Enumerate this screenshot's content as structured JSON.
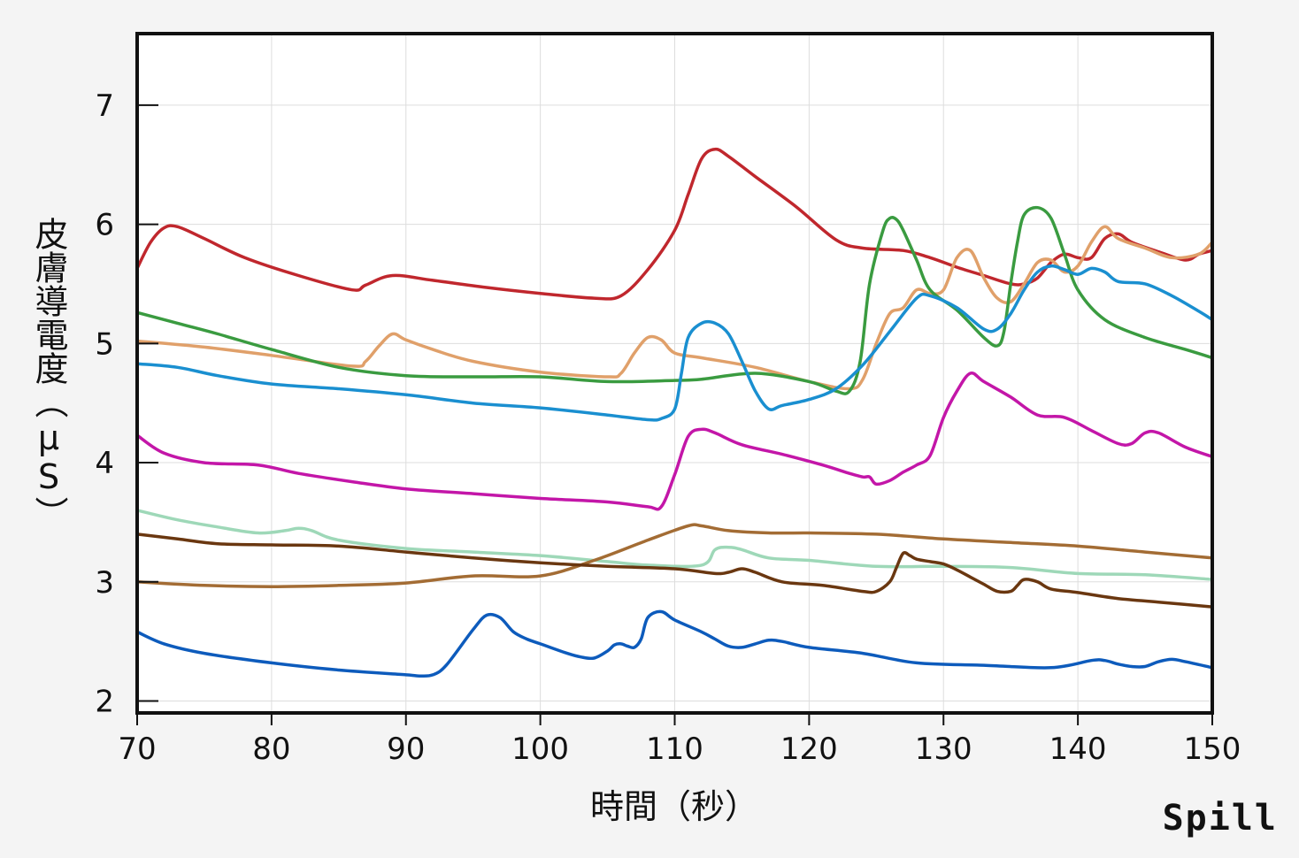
{
  "chart_data": {
    "type": "line",
    "xlabel": "時間（秒）",
    "ylabel": "皮膚導電度（μS）",
    "xlim": [
      70,
      150
    ],
    "ylim": [
      1.9,
      7.6
    ],
    "xticks": [
      "70",
      "80",
      "90",
      "100",
      "110",
      "120",
      "130",
      "140",
      "150"
    ],
    "yticks": [
      "2",
      "3",
      "4",
      "5",
      "6",
      "7"
    ],
    "grid": true,
    "series": [
      {
        "color": "#c0272d",
        "x": [
          70,
          71,
          72,
          73,
          75,
          78,
          82,
          86,
          87,
          89,
          92,
          96,
          100,
          104,
          106,
          108,
          110,
          111,
          112,
          113,
          114,
          116,
          119,
          122,
          124,
          127,
          129,
          131,
          133,
          135,
          136,
          137,
          138,
          139,
          140,
          141,
          142,
          143,
          144,
          146,
          148,
          149,
          150
        ],
        "y": [
          5.63,
          5.85,
          5.97,
          5.98,
          5.88,
          5.72,
          5.57,
          5.45,
          5.49,
          5.57,
          5.53,
          5.47,
          5.42,
          5.38,
          5.4,
          5.62,
          5.95,
          6.25,
          6.55,
          6.63,
          6.57,
          6.4,
          6.15,
          5.87,
          5.8,
          5.78,
          5.72,
          5.64,
          5.57,
          5.5,
          5.5,
          5.55,
          5.68,
          5.75,
          5.72,
          5.72,
          5.88,
          5.92,
          5.85,
          5.77,
          5.7,
          5.75,
          5.78
        ]
      },
      {
        "color": "#e0a06a",
        "x": [
          70,
          75,
          80,
          86,
          87,
          88,
          89,
          90,
          92,
          95,
          100,
          105,
          106,
          107,
          108,
          109,
          110,
          112,
          116,
          120,
          123,
          124,
          125,
          126,
          127,
          128,
          129,
          130,
          131,
          132,
          133,
          134,
          135,
          136,
          137,
          138,
          139,
          140,
          141,
          142,
          143,
          145,
          147,
          149,
          150
        ],
        "y": [
          5.02,
          4.97,
          4.9,
          4.81,
          4.85,
          4.98,
          5.08,
          5.03,
          4.95,
          4.85,
          4.76,
          4.72,
          4.75,
          4.92,
          5.05,
          5.03,
          4.92,
          4.88,
          4.8,
          4.68,
          4.62,
          4.7,
          5.0,
          5.25,
          5.3,
          5.45,
          5.42,
          5.45,
          5.72,
          5.78,
          5.55,
          5.38,
          5.35,
          5.5,
          5.68,
          5.7,
          5.6,
          5.65,
          5.85,
          5.98,
          5.88,
          5.8,
          5.72,
          5.75,
          5.85
        ]
      },
      {
        "color": "#3a9b40",
        "x": [
          70,
          73,
          76,
          80,
          85,
          90,
          95,
          100,
          105,
          110,
          112,
          116,
          120,
          122,
          123,
          123.8,
          124.5,
          125.5,
          126,
          126.5,
          127,
          128,
          129,
          131,
          133,
          134,
          134.5,
          135,
          135.5,
          136,
          137,
          138,
          139,
          140,
          142,
          145,
          148,
          150
        ],
        "y": [
          5.26,
          5.17,
          5.08,
          4.95,
          4.8,
          4.73,
          4.72,
          4.72,
          4.68,
          4.69,
          4.7,
          4.75,
          4.68,
          4.6,
          4.6,
          4.85,
          5.5,
          5.95,
          6.05,
          6.04,
          5.95,
          5.7,
          5.45,
          5.28,
          5.05,
          4.98,
          5.1,
          5.5,
          5.85,
          6.08,
          6.14,
          6.05,
          5.75,
          5.45,
          5.2,
          5.05,
          4.95,
          4.88
        ]
      },
      {
        "color": "#1a8fd0",
        "x": [
          70,
          73,
          76,
          80,
          85,
          90,
          95,
          100,
          105,
          108,
          109,
          110,
          110.5,
          111,
          112,
          113,
          114,
          115,
          116,
          117,
          118,
          120,
          122,
          124,
          126,
          128,
          129,
          131,
          133,
          134,
          135,
          136,
          137,
          138,
          139,
          140,
          141,
          142,
          143,
          145,
          147,
          149,
          150
        ],
        "y": [
          4.83,
          4.8,
          4.73,
          4.66,
          4.62,
          4.57,
          4.5,
          4.46,
          4.4,
          4.36,
          4.37,
          4.45,
          4.75,
          5.05,
          5.17,
          5.17,
          5.08,
          4.85,
          4.6,
          4.45,
          4.48,
          4.53,
          4.62,
          4.82,
          5.1,
          5.38,
          5.4,
          5.3,
          5.12,
          5.12,
          5.25,
          5.45,
          5.6,
          5.65,
          5.62,
          5.58,
          5.63,
          5.6,
          5.52,
          5.5,
          5.4,
          5.27,
          5.2
        ]
      },
      {
        "color": "#c316a8",
        "x": [
          70,
          72,
          75,
          79,
          82,
          86,
          90,
          95,
          100,
          105,
          108,
          109,
          110,
          111,
          112,
          113,
          115,
          118,
          121,
          123,
          124,
          124.5,
          125,
          126,
          127,
          128,
          129,
          130,
          131,
          132,
          133,
          135,
          137,
          139,
          141,
          143,
          144,
          145,
          146,
          148,
          150
        ],
        "y": [
          4.23,
          4.08,
          4.0,
          3.98,
          3.91,
          3.84,
          3.78,
          3.74,
          3.7,
          3.67,
          3.63,
          3.63,
          3.9,
          4.22,
          4.28,
          4.25,
          4.15,
          4.07,
          3.98,
          3.91,
          3.88,
          3.88,
          3.82,
          3.85,
          3.92,
          3.98,
          4.06,
          4.38,
          4.6,
          4.75,
          4.68,
          4.55,
          4.4,
          4.38,
          4.27,
          4.16,
          4.16,
          4.25,
          4.25,
          4.13,
          4.05
        ]
      },
      {
        "color": "#9ed8b8",
        "x": [
          70,
          73,
          76,
          79,
          81,
          82,
          83,
          85,
          90,
          95,
          100,
          105,
          108,
          112,
          113,
          114,
          115,
          117,
          120,
          125,
          130,
          135,
          140,
          145,
          150
        ],
        "y": [
          3.6,
          3.52,
          3.46,
          3.41,
          3.43,
          3.45,
          3.43,
          3.35,
          3.28,
          3.25,
          3.22,
          3.17,
          3.14,
          3.14,
          3.27,
          3.29,
          3.27,
          3.2,
          3.18,
          3.13,
          3.13,
          3.12,
          3.07,
          3.06,
          3.02
        ]
      },
      {
        "color": "#a36c34",
        "x": [
          70,
          75,
          80,
          85,
          90,
          95,
          100,
          104,
          108,
          111,
          112,
          114,
          117,
          120,
          125,
          130,
          135,
          140,
          145,
          150
        ],
        "y": [
          3.0,
          2.97,
          2.96,
          2.97,
          2.99,
          3.05,
          3.05,
          3.18,
          3.35,
          3.47,
          3.47,
          3.43,
          3.41,
          3.41,
          3.4,
          3.36,
          3.33,
          3.3,
          3.25,
          3.2
        ]
      },
      {
        "color": "#6a3710",
        "x": [
          70,
          73,
          76,
          80,
          85,
          90,
          95,
          100,
          105,
          110,
          113,
          114,
          115,
          116,
          118,
          121,
          124,
          125,
          126,
          126.5,
          127,
          127.5,
          128,
          129,
          130,
          131,
          132,
          133,
          134,
          135,
          135.5,
          136,
          137,
          138,
          140,
          143,
          146,
          150
        ],
        "y": [
          3.4,
          3.36,
          3.32,
          3.31,
          3.3,
          3.25,
          3.2,
          3.16,
          3.13,
          3.11,
          3.07,
          3.08,
          3.11,
          3.08,
          3.0,
          2.97,
          2.92,
          2.92,
          3.0,
          3.12,
          3.24,
          3.22,
          3.19,
          3.17,
          3.15,
          3.1,
          3.04,
          2.98,
          2.92,
          2.92,
          2.97,
          3.02,
          3.0,
          2.94,
          2.91,
          2.86,
          2.83,
          2.79
        ]
      },
      {
        "color": "#0d5bbc",
        "x": [
          70,
          72,
          75,
          80,
          85,
          90,
          91,
          92,
          93,
          95,
          96,
          97,
          98,
          99,
          100,
          102,
          103,
          104,
          105,
          105.5,
          106,
          106.5,
          107,
          107.5,
          108,
          109,
          110,
          112,
          113,
          114,
          115,
          116,
          117,
          118,
          120,
          124,
          128,
          133,
          138,
          141,
          142,
          143,
          144,
          145,
          146,
          147,
          148,
          150
        ],
        "y": [
          2.58,
          2.48,
          2.4,
          2.32,
          2.26,
          2.22,
          2.21,
          2.22,
          2.3,
          2.6,
          2.72,
          2.7,
          2.58,
          2.52,
          2.48,
          2.4,
          2.37,
          2.36,
          2.42,
          2.47,
          2.48,
          2.46,
          2.45,
          2.52,
          2.7,
          2.75,
          2.68,
          2.58,
          2.52,
          2.46,
          2.45,
          2.48,
          2.51,
          2.5,
          2.45,
          2.4,
          2.32,
          2.3,
          2.28,
          2.34,
          2.34,
          2.31,
          2.29,
          2.29,
          2.33,
          2.35,
          2.33,
          2.28
        ]
      }
    ]
  },
  "brand": {
    "logo": "Spill"
  }
}
